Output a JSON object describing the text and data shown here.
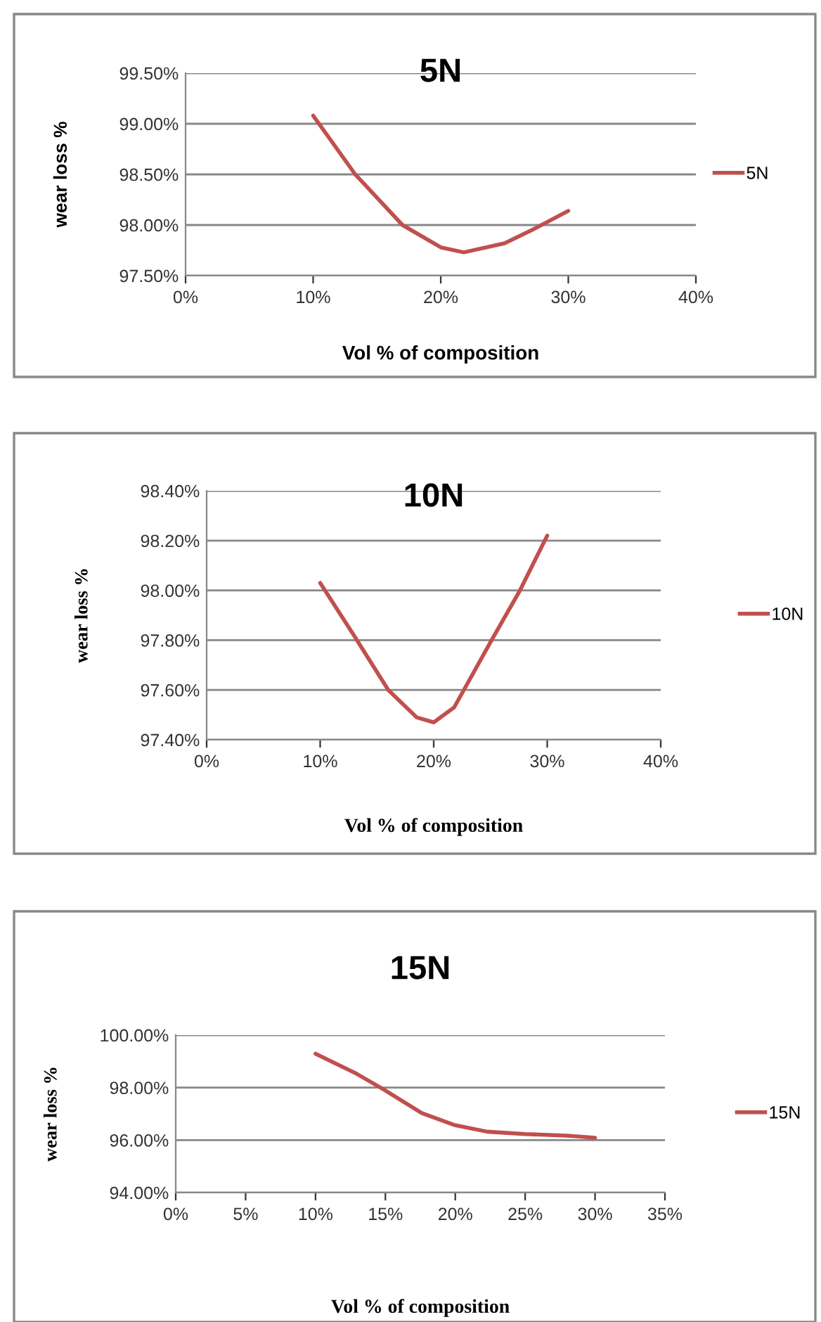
{
  "chart_data": [
    {
      "type": "line",
      "title": "5N",
      "xlabel": "Vol % of composition",
      "ylabel": "wear loss %",
      "series": [
        {
          "name": "5N",
          "color": "#c0504d",
          "x": [
            10,
            13.3,
            17,
            20,
            21.8,
            25,
            27.3,
            30
          ],
          "values": [
            99.08,
            98.5,
            98.0,
            97.78,
            97.73,
            97.82,
            97.96,
            98.14
          ]
        }
      ],
      "xlim": [
        0,
        40
      ],
      "xticks": [
        {
          "value": 0,
          "label": "0%"
        },
        {
          "value": 10,
          "label": "10%"
        },
        {
          "value": 20,
          "label": "20%"
        },
        {
          "value": 30,
          "label": "30%"
        },
        {
          "value": 40,
          "label": "40%"
        }
      ],
      "ylim": [
        97.5,
        99.5
      ],
      "yticks": [
        {
          "value": 97.5,
          "label": "97.50%"
        },
        {
          "value": 98.0,
          "label": "98.00%"
        },
        {
          "value": 98.5,
          "label": "98.50%"
        },
        {
          "value": 99.0,
          "label": "99.00%"
        },
        {
          "value": 99.5,
          "label": "99.50%"
        }
      ],
      "grid": "y",
      "legend": "right",
      "marker": "none",
      "line_style": "solid"
    },
    {
      "type": "line",
      "title": "10N",
      "xlabel": "Vol % of composition",
      "ylabel": "wear loss %",
      "series": [
        {
          "name": "10N",
          "color": "#c0504d",
          "x": [
            10,
            13.1,
            16,
            18.5,
            20,
            21.8,
            25.1,
            27.6,
            30
          ],
          "values": [
            98.03,
            97.81,
            97.6,
            97.49,
            97.47,
            97.53,
            97.8,
            98.0,
            98.22
          ]
        }
      ],
      "xlim": [
        0,
        40
      ],
      "xticks": [
        {
          "value": 0,
          "label": "0%"
        },
        {
          "value": 10,
          "label": "10%"
        },
        {
          "value": 20,
          "label": "20%"
        },
        {
          "value": 30,
          "label": "30%"
        },
        {
          "value": 40,
          "label": "40%"
        }
      ],
      "ylim": [
        97.4,
        98.4
      ],
      "yticks": [
        {
          "value": 97.4,
          "label": "97.40%"
        },
        {
          "value": 97.6,
          "label": "97.60%"
        },
        {
          "value": 97.8,
          "label": "97.80%"
        },
        {
          "value": 98.0,
          "label": "98.00%"
        },
        {
          "value": 98.2,
          "label": "98.20%"
        },
        {
          "value": 98.4,
          "label": "98.40%"
        }
      ],
      "grid": "y",
      "legend": "right",
      "marker": "none",
      "line_style": "solid"
    },
    {
      "type": "line",
      "title": "15N",
      "xlabel": "Vol % of composition",
      "ylabel": "wear loss %",
      "series": [
        {
          "name": "15N",
          "color": "#c0504d",
          "x": [
            10,
            12.9,
            14.9,
            17.6,
            19.9,
            22.3,
            25,
            28,
            30
          ],
          "values": [
            99.29,
            98.54,
            97.92,
            97.03,
            96.58,
            96.32,
            96.23,
            96.17,
            96.09
          ]
        }
      ],
      "xlim": [
        0,
        35
      ],
      "xticks": [
        {
          "value": 0,
          "label": "0%"
        },
        {
          "value": 5,
          "label": "5%"
        },
        {
          "value": 10,
          "label": "10%"
        },
        {
          "value": 15,
          "label": "15%"
        },
        {
          "value": 20,
          "label": "20%"
        },
        {
          "value": 25,
          "label": "25%"
        },
        {
          "value": 30,
          "label": "30%"
        },
        {
          "value": 35,
          "label": "35%"
        }
      ],
      "ylim": [
        94,
        100
      ],
      "yticks": [
        {
          "value": 94,
          "label": "94.00%"
        },
        {
          "value": 96,
          "label": "96.00%"
        },
        {
          "value": 98,
          "label": "98.00%"
        },
        {
          "value": 100,
          "label": "100.00%"
        }
      ],
      "grid": "y",
      "legend": "right",
      "marker": "none",
      "line_style": "solid"
    }
  ]
}
